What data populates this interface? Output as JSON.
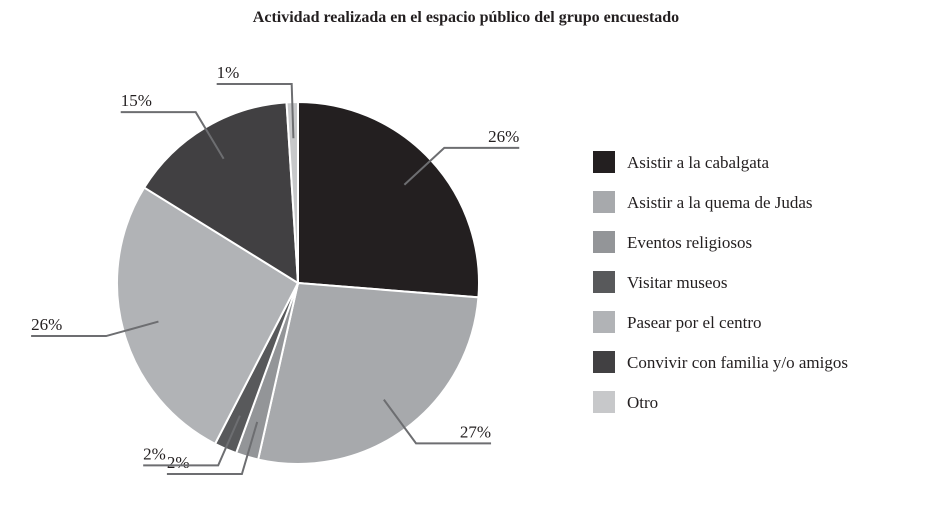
{
  "chart_data": {
    "type": "pie",
    "title": "Actividad realizada en el espacio público del grupo encuestado",
    "categories": [
      "Asistir a la cabalgata",
      "Asistir a la quema de Judas",
      "Eventos religiosos",
      "Visitar museos",
      "Pasear por el centro",
      "Convivir con familia y/o amigos",
      "Otro"
    ],
    "values": [
      26,
      27,
      2,
      2,
      26,
      15,
      1
    ],
    "value_labels": [
      "26%",
      "27%",
      "2%",
      "2%",
      "26%",
      "15%",
      "1%"
    ],
    "colors": [
      "#231f20",
      "#a7a9ac",
      "#939598",
      "#58595b",
      "#b1b3b6",
      "#414042",
      "#c7c8ca"
    ],
    "legend": "right"
  }
}
